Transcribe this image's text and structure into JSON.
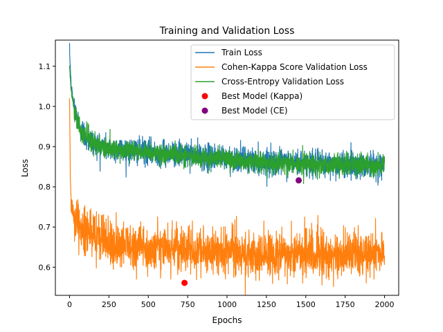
{
  "chart_data": {
    "type": "line",
    "title": "Training and Validation Loss",
    "xlabel": "Epochs",
    "ylabel": "Loss",
    "xlim": [
      -90,
      2090
    ],
    "ylim": [
      0.53,
      1.165
    ],
    "xticks": [
      0,
      250,
      500,
      750,
      1000,
      1250,
      1500,
      1750,
      2000
    ],
    "yticks": [
      0.6,
      0.7,
      0.8,
      0.9,
      1.0,
      1.1
    ],
    "ytick_labels": [
      "0.6",
      "0.7",
      "0.8",
      "0.9",
      "1.0",
      "1.1"
    ],
    "grid": false,
    "legend_position": "top-right",
    "series": [
      {
        "name": "Train Loss",
        "color": "#1f77b4",
        "trend_x": [
          0,
          10,
          30,
          60,
          100,
          150,
          250,
          400,
          600,
          800,
          1000,
          1200,
          1400,
          1600,
          1800,
          2000
        ],
        "trend_y": [
          1.14,
          1.05,
          1.0,
          0.955,
          0.925,
          0.91,
          0.895,
          0.89,
          0.885,
          0.878,
          0.87,
          0.864,
          0.86,
          0.857,
          0.855,
          0.854
        ],
        "noise": 0.016
      },
      {
        "name": "Cohen-Kappa Score Validation Loss",
        "color": "#ff7f0e",
        "trend_x": [
          0,
          2,
          5,
          10,
          20,
          40,
          80,
          150,
          250,
          400,
          600,
          800,
          1000,
          1200,
          1400,
          1600,
          1800,
          2000
        ],
        "trend_y": [
          1.02,
          0.95,
          0.82,
          0.76,
          0.735,
          0.715,
          0.69,
          0.675,
          0.66,
          0.65,
          0.645,
          0.64,
          0.638,
          0.636,
          0.634,
          0.632,
          0.631,
          0.63
        ],
        "noise": 0.028
      },
      {
        "name": "Cross-Entropy Validation Loss",
        "color": "#2ca02c",
        "trend_x": [
          0,
          10,
          30,
          60,
          100,
          150,
          250,
          400,
          600,
          800,
          1000,
          1200,
          1400,
          1600,
          1800,
          2000
        ],
        "trend_y": [
          1.1,
          1.04,
          0.99,
          0.95,
          0.925,
          0.91,
          0.895,
          0.888,
          0.882,
          0.876,
          0.868,
          0.862,
          0.858,
          0.855,
          0.853,
          0.852
        ],
        "noise": 0.013
      }
    ],
    "markers": [
      {
        "name": "Best Model (Kappa)",
        "color": "#ff0000",
        "x": 730,
        "y": 0.561
      },
      {
        "name": "Best Model (CE)",
        "color": "#800080",
        "x": 1455,
        "y": 0.816
      }
    ]
  }
}
